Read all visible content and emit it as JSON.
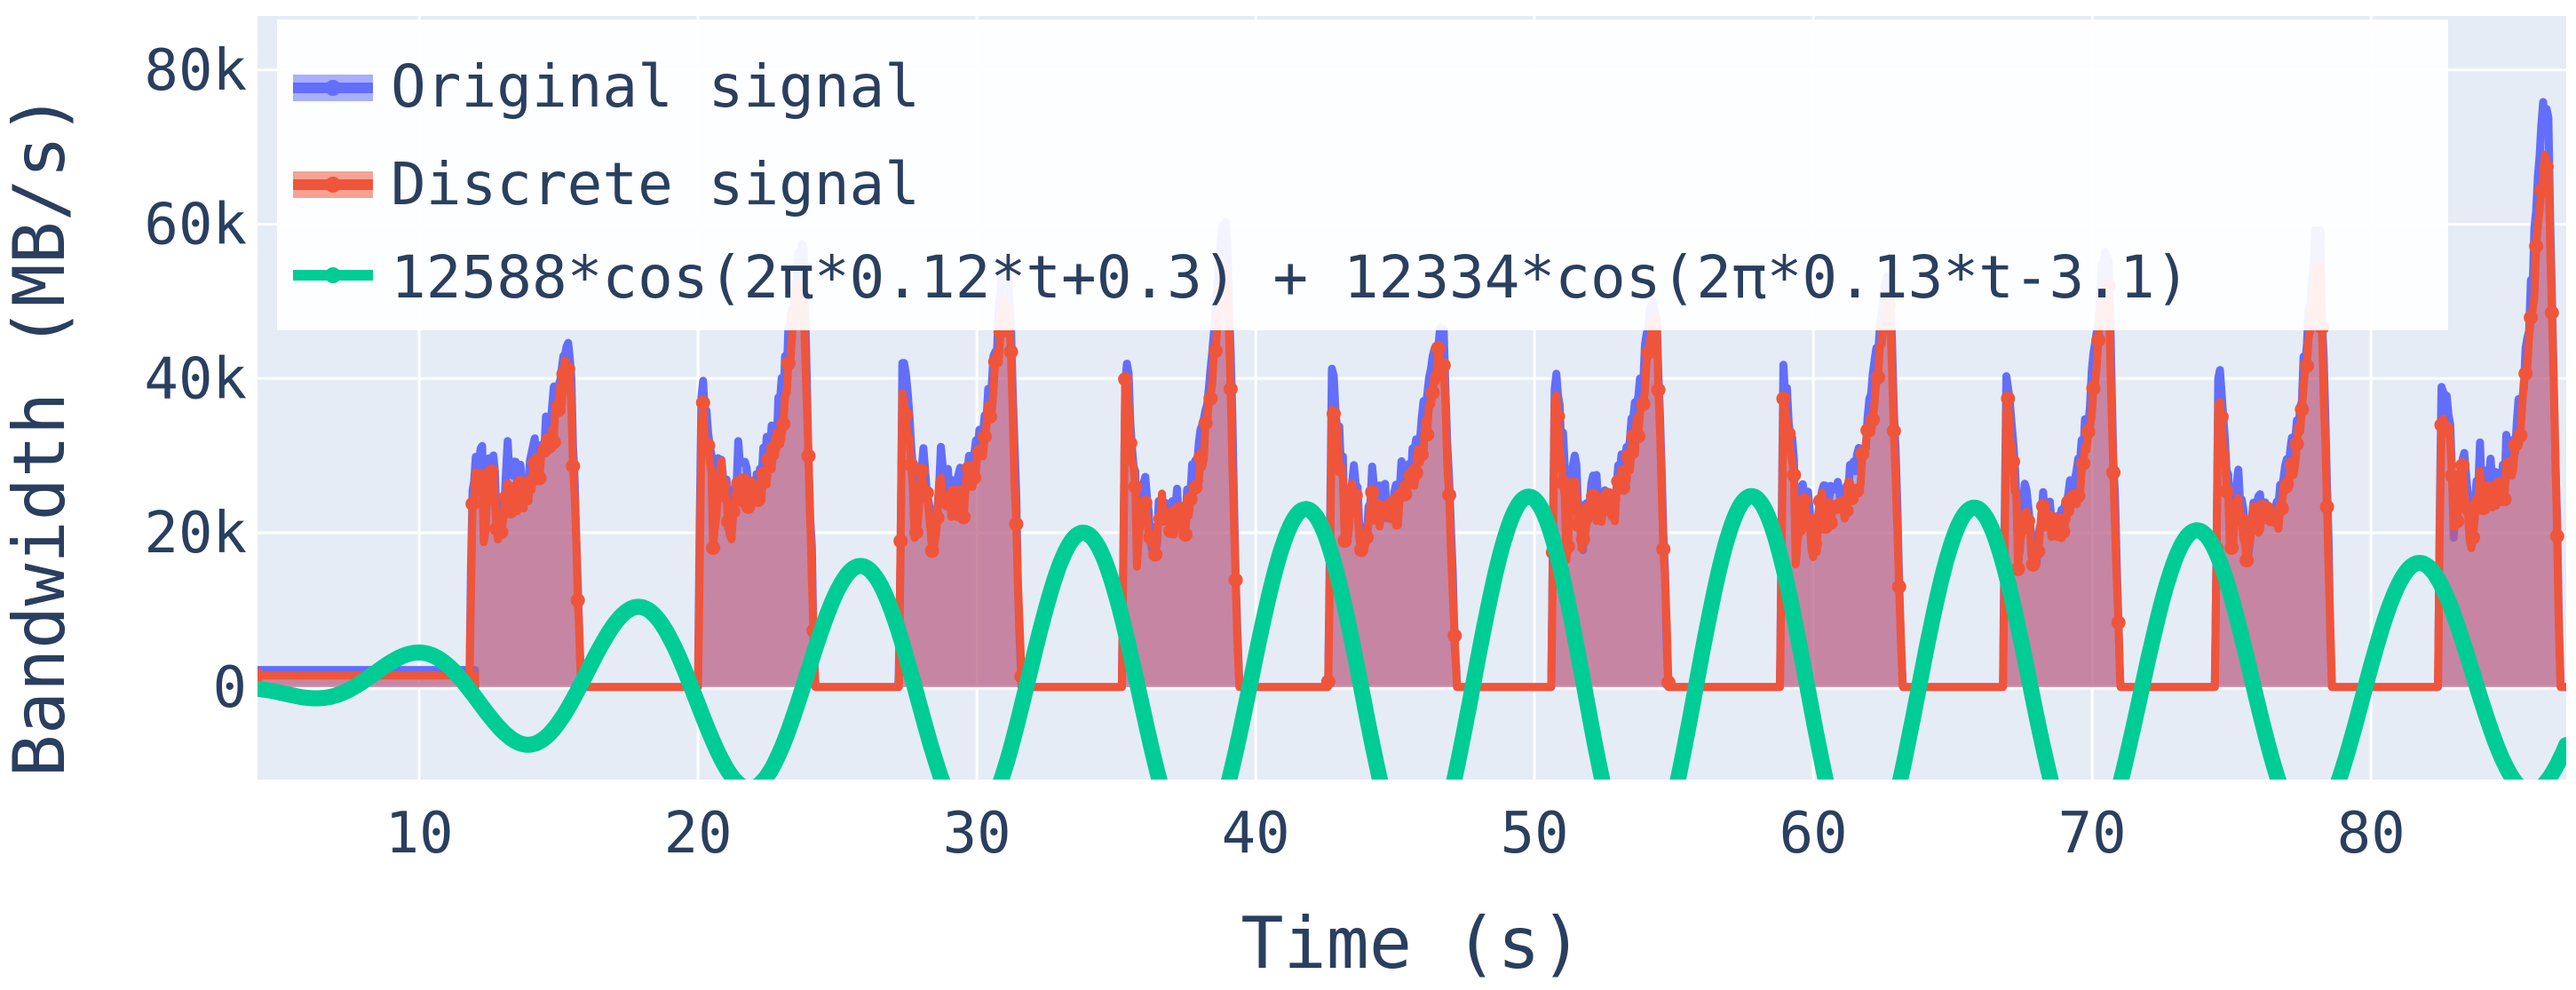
{
  "chart_data": {
    "type": "area",
    "xlabel": "Time (s)",
    "ylabel": "Bandwidth (MB/s)",
    "xlim": [
      4.2,
      87
    ],
    "ylim": [
      -12000,
      87000
    ],
    "x_ticks": [
      10,
      20,
      30,
      40,
      50,
      60,
      70,
      80
    ],
    "y_ticks": [
      0,
      20000,
      40000,
      60000,
      80000
    ],
    "y_tick_labels": [
      "0",
      "20k",
      "40k",
      "60k",
      "80k"
    ],
    "grid": true,
    "legend_position": "top-left",
    "colors": {
      "original": "#636efa",
      "discrete": "#ef553b",
      "fit": "#00cc96",
      "plot_bg": "#e5ecf6",
      "grid": "#ffffff",
      "text": "#2a3f5f"
    },
    "series": [
      {
        "name": "Original signal",
        "key": "original",
        "fill": "tozeroy",
        "baseline": [
          [
            4.2,
            2200
          ],
          [
            12,
            2200
          ]
        ],
        "bursts": [
          {
            "start": 11.8,
            "end": 15.8,
            "peak": 44000,
            "left_peak": 28000,
            "mid": 30000
          },
          {
            "start": 20.0,
            "end": 24.2,
            "peak": 56000,
            "left_peak": 40000,
            "mid": 30000
          },
          {
            "start": 27.2,
            "end": 31.6,
            "peak": 53000,
            "left_peak": 42000,
            "mid": 29000
          },
          {
            "start": 35.2,
            "end": 39.4,
            "peak": 58000,
            "left_peak": 44000,
            "mid": 26000
          },
          {
            "start": 42.6,
            "end": 47.2,
            "peak": 46000,
            "left_peak": 41000,
            "mid": 27000
          },
          {
            "start": 50.6,
            "end": 54.8,
            "peak": 50000,
            "left_peak": 41000,
            "mid": 28000
          },
          {
            "start": 58.8,
            "end": 63.2,
            "peak": 52000,
            "left_peak": 42000,
            "mid": 27000
          },
          {
            "start": 66.8,
            "end": 71.0,
            "peak": 55000,
            "left_peak": 42000,
            "mid": 25000
          },
          {
            "start": 74.4,
            "end": 78.6,
            "peak": 58000,
            "left_peak": 41000,
            "mid": 26000
          },
          {
            "start": 82.4,
            "end": 86.8,
            "peak": 74000,
            "left_peak": 41000,
            "mid": 30000
          }
        ]
      },
      {
        "name": "Discrete signal",
        "key": "discrete",
        "fill": "tozeroy",
        "baseline": [
          [
            4.2,
            1500
          ],
          [
            12,
            1500
          ]
        ],
        "bursts_scale": 0.92
      },
      {
        "name": "12588*cos(2π*0.12*t+0.3) + 12334*cos(2π*0.13*t-3.1)",
        "key": "fit",
        "fill": "none",
        "amplitudes": [
          12588,
          12334
        ],
        "frequencies": [
          0.12,
          0.13
        ],
        "phases": [
          0.3,
          -3.1
        ]
      }
    ]
  }
}
